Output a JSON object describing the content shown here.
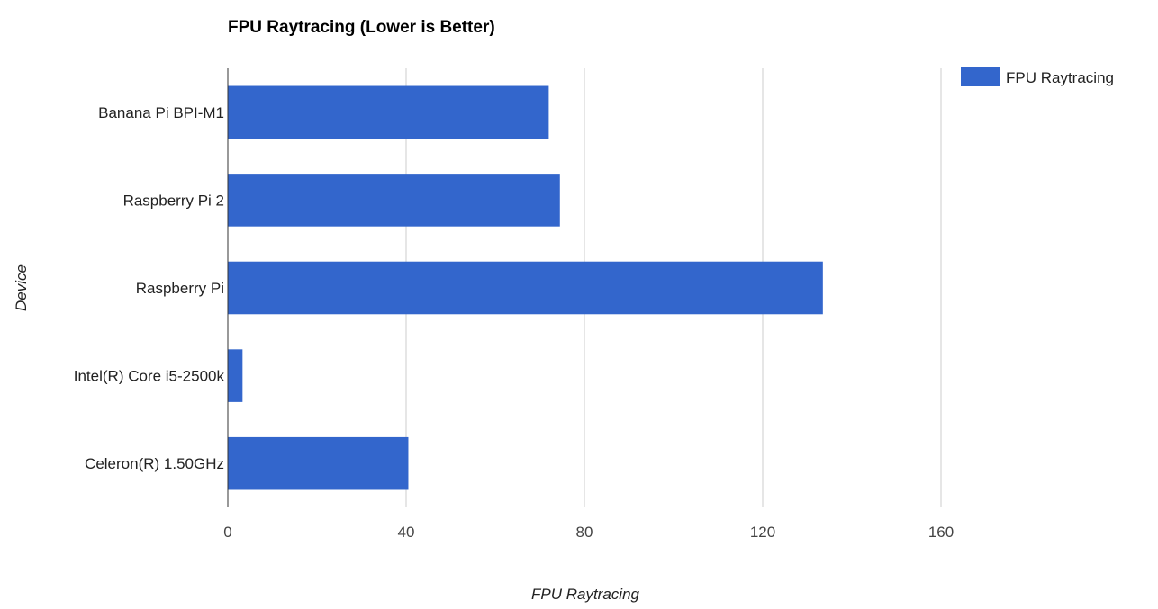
{
  "chart_data": {
    "type": "bar",
    "orientation": "horizontal",
    "title": "FPU Raytracing (Lower is Better)",
    "xlabel": "FPU Raytracing",
    "ylabel": "Device",
    "categories": [
      "Banana Pi BPI-M1",
      "Raspberry Pi 2",
      "Raspberry Pi",
      "Intel(R) Core i5-2500k",
      "Celeron(R) 1.50GHz"
    ],
    "series": [
      {
        "name": "FPU Raytracing",
        "values": [
          72,
          74.5,
          133.5,
          3.3,
          40.5
        ],
        "color": "#3366cc"
      }
    ],
    "xlim": [
      0,
      160
    ],
    "xticks": [
      "0",
      "40",
      "80",
      "120",
      "160"
    ],
    "grid": true,
    "legend": {
      "position": "top-right",
      "entries": [
        "FPU Raytracing"
      ]
    }
  }
}
